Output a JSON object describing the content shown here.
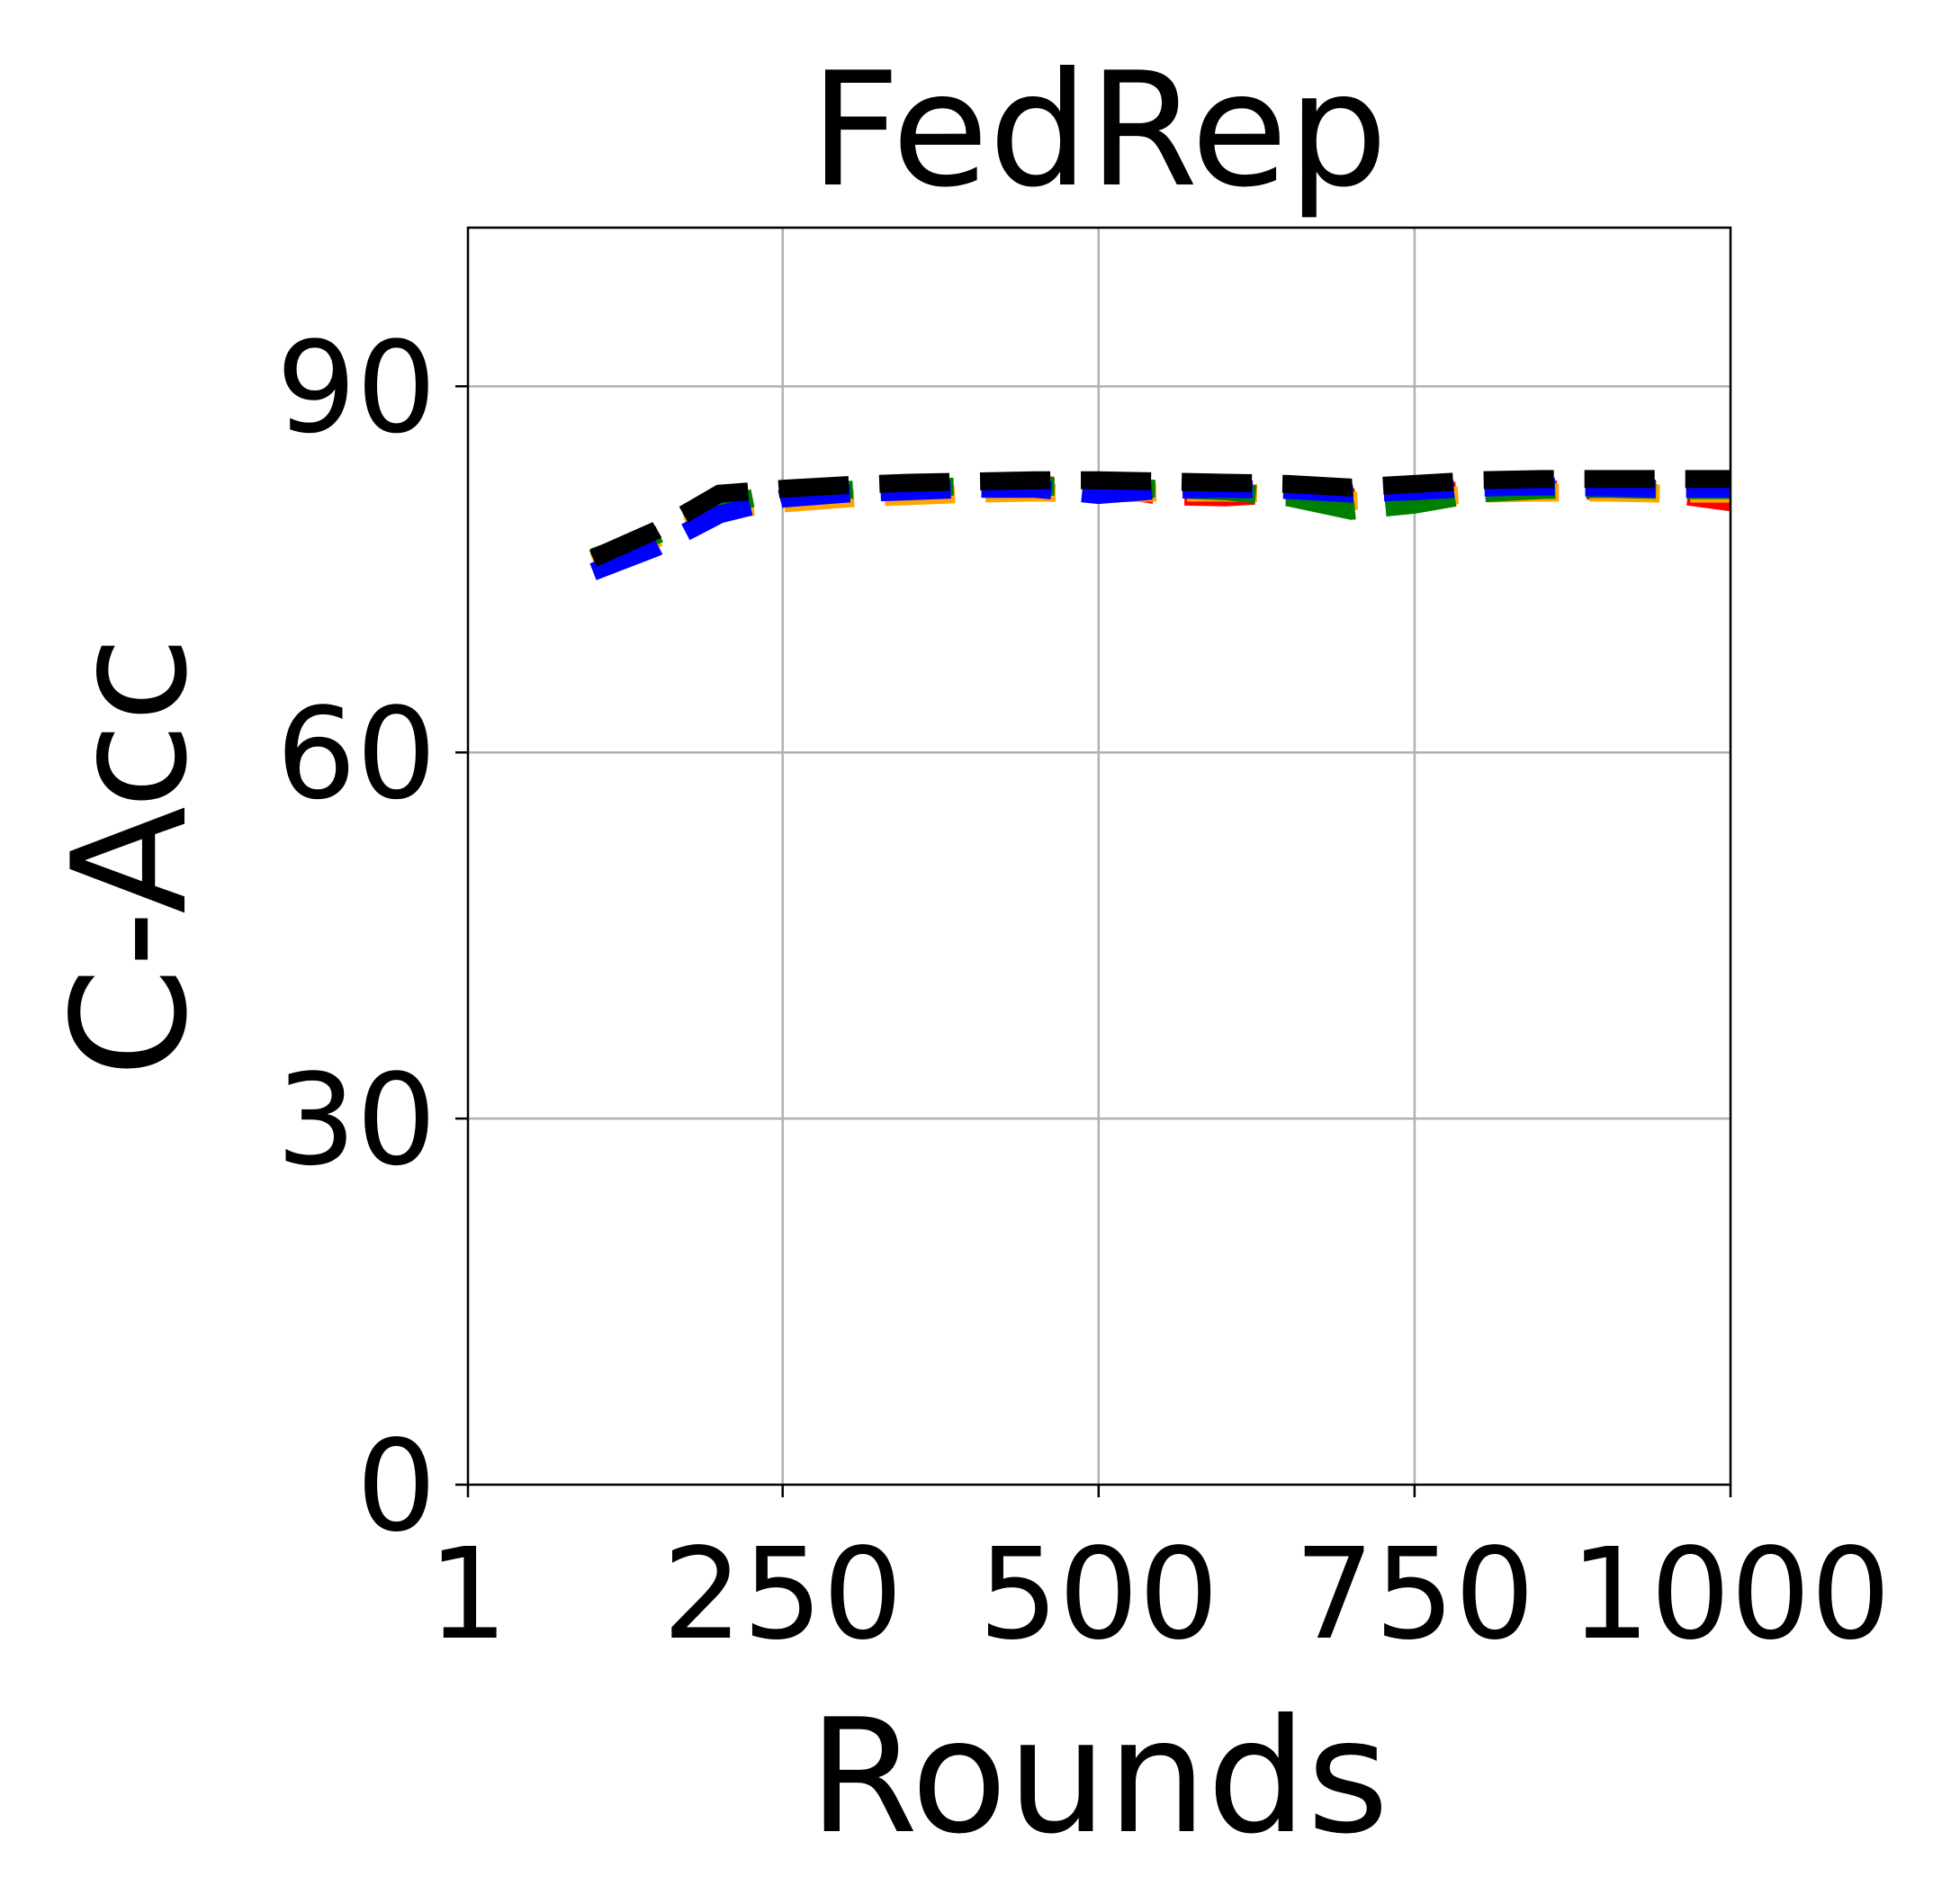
{
  "chart_data": {
    "type": "line",
    "title": "FedRep",
    "xlabel": "Rounds",
    "ylabel": "C-Acc",
    "xlim": [
      1,
      1000
    ],
    "ylim": [
      0,
      103
    ],
    "x_ticks": [
      1,
      250,
      500,
      750,
      1000
    ],
    "x_tick_labels": [
      "1",
      "250",
      "500",
      "750",
      "1000"
    ],
    "y_ticks": [
      0,
      30,
      60,
      90
    ],
    "y_tick_labels": [
      "0",
      "30",
      "60",
      "90"
    ],
    "grid": true,
    "legend": "none",
    "x": [
      100,
      150,
      200,
      250,
      300,
      350,
      400,
      450,
      500,
      550,
      600,
      650,
      700,
      750,
      800,
      850,
      900,
      950,
      1000
    ],
    "series": [
      {
        "color": "#ff0000",
        "style": "dashed",
        "values": [
          75.8,
          77.8,
          80.2,
          81.3,
          81.5,
          81.7,
          81.8,
          81.9,
          81.8,
          81.0,
          80.9,
          81.2,
          80.9,
          81.3,
          81.5,
          81.6,
          81.4,
          81.2,
          80.5
        ]
      },
      {
        "color": "#ffa500",
        "style": "dashed",
        "values": [
          75.6,
          77.5,
          79.8,
          80.4,
          80.8,
          81.0,
          81.2,
          81.3,
          81.2,
          81.3,
          81.3,
          81.2,
          80.6,
          80.8,
          81.2,
          81.3,
          81.3,
          81.2,
          81.2
        ]
      },
      {
        "color": "#008000",
        "style": "dashed",
        "values": [
          76.0,
          77.8,
          80.3,
          81.3,
          81.5,
          81.7,
          81.8,
          81.8,
          81.7,
          81.6,
          81.4,
          80.9,
          79.8,
          80.3,
          81.2,
          81.5,
          81.6,
          81.5,
          81.5
        ]
      },
      {
        "color": "#0000ff",
        "style": "dashed",
        "values": [
          74.8,
          76.8,
          79.5,
          80.8,
          81.2,
          81.4,
          81.6,
          81.6,
          81.1,
          81.5,
          81.6,
          81.5,
          81.2,
          81.4,
          81.7,
          81.8,
          81.7,
          81.6,
          81.6
        ]
      },
      {
        "color": "#000000",
        "style": "dashed",
        "values": [
          75.9,
          78.2,
          81.2,
          81.6,
          81.9,
          82.1,
          82.2,
          82.3,
          82.3,
          82.2,
          82.1,
          82.0,
          81.7,
          82.0,
          82.3,
          82.4,
          82.4,
          82.4,
          82.4
        ]
      }
    ]
  }
}
